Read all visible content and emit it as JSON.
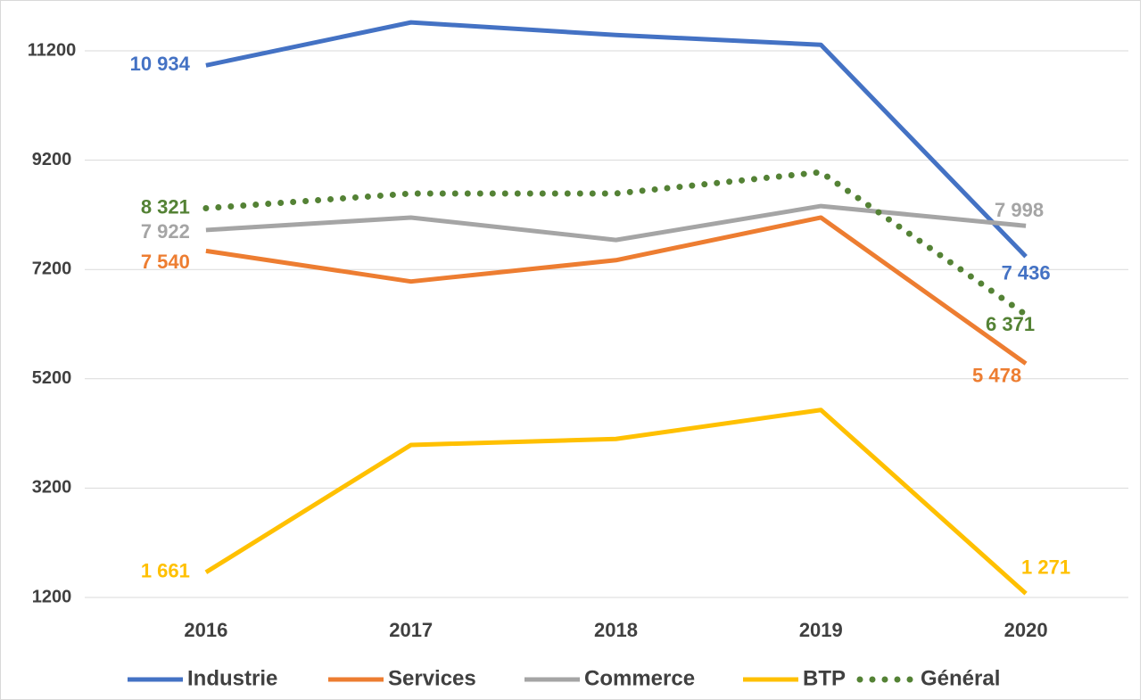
{
  "chart_data": {
    "type": "line",
    "categories": [
      "2016",
      "2017",
      "2018",
      "2019",
      "2020"
    ],
    "series": [
      {
        "name": "Industrie",
        "color": "#4472c4",
        "dash": false,
        "values": [
          10934,
          11720,
          11490,
          11310,
          7436
        ],
        "value_labels": [
          "10 934",
          null,
          null,
          null,
          "7 436"
        ]
      },
      {
        "name": "Services",
        "color": "#ed7d31",
        "dash": false,
        "values": [
          7540,
          6980,
          7370,
          8150,
          5478
        ],
        "value_labels": [
          "7 540",
          null,
          null,
          null,
          "5 478"
        ]
      },
      {
        "name": "Commerce",
        "color": "#a5a5a5",
        "dash": false,
        "values": [
          7922,
          8150,
          7740,
          8360,
          7998
        ],
        "value_labels": [
          "7 922",
          null,
          null,
          null,
          "7 998"
        ]
      },
      {
        "name": "BTP",
        "color": "#ffc000",
        "dash": false,
        "values": [
          1661,
          3990,
          4100,
          4630,
          1271
        ],
        "value_labels": [
          "1 661",
          null,
          null,
          null,
          "1 271"
        ]
      },
      {
        "name": "Général",
        "color": "#548235",
        "dash": true,
        "values": [
          8321,
          8590,
          8590,
          8980,
          6371
        ],
        "value_labels": [
          "8 321",
          null,
          null,
          null,
          "6 371"
        ]
      }
    ],
    "ylim": [
      1200,
      12000
    ],
    "yticks": [
      1200,
      3200,
      5200,
      7200,
      9200,
      11200
    ],
    "grid": true,
    "legend": "bottom"
  }
}
